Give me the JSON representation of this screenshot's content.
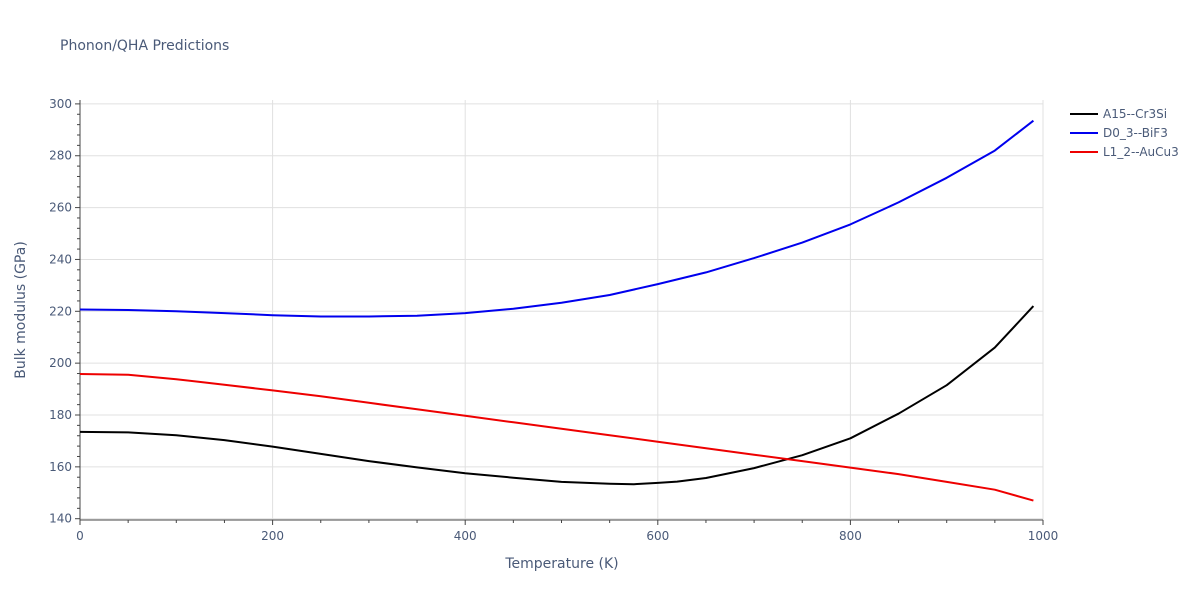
{
  "chart_data": {
    "type": "line",
    "title": "Phonon/QHA Predictions",
    "xlabel": "Temperature (K)",
    "ylabel": "Bulk modulus (GPa)",
    "xlim": [
      0,
      1000
    ],
    "ylim": [
      139.5,
      301.5
    ],
    "xticks": [
      0,
      200,
      400,
      600,
      800,
      1000
    ],
    "yticks": [
      140,
      160,
      180,
      200,
      220,
      240,
      260,
      280,
      300
    ],
    "grid": true,
    "legend_position": "top-right",
    "series": [
      {
        "name": "A15--Cr3Si",
        "color": "#000000",
        "x": [
          0,
          50,
          100,
          150,
          200,
          250,
          300,
          350,
          400,
          450,
          500,
          550,
          575,
          600,
          620,
          650,
          700,
          750,
          800,
          850,
          900,
          950,
          990
        ],
        "y": [
          173.5,
          173.3,
          172.2,
          170.3,
          167.8,
          165.0,
          162.2,
          159.8,
          157.5,
          155.8,
          154.2,
          153.5,
          153.3,
          153.8,
          154.3,
          155.7,
          159.5,
          164.5,
          171.0,
          180.5,
          191.5,
          206.0,
          222.0
        ]
      },
      {
        "name": "D0_3--BiF3",
        "color": "#0000ee",
        "x": [
          0,
          50,
          100,
          150,
          200,
          250,
          300,
          350,
          400,
          450,
          500,
          550,
          600,
          650,
          700,
          750,
          800,
          850,
          900,
          950,
          990
        ],
        "y": [
          220.7,
          220.5,
          220.0,
          219.3,
          218.5,
          218.0,
          218.0,
          218.3,
          219.3,
          221.0,
          223.3,
          226.3,
          230.5,
          235.0,
          240.5,
          246.5,
          253.5,
          262.0,
          271.5,
          282.0,
          293.5
        ]
      },
      {
        "name": "L1_2--AuCu3",
        "color": "#ee0000",
        "x": [
          0,
          50,
          100,
          150,
          200,
          250,
          300,
          350,
          400,
          450,
          500,
          550,
          600,
          650,
          700,
          750,
          800,
          850,
          900,
          950,
          990
        ],
        "y": [
          195.8,
          195.5,
          193.8,
          191.7,
          189.5,
          187.2,
          184.7,
          182.2,
          179.7,
          177.2,
          174.7,
          172.2,
          169.7,
          167.2,
          164.7,
          162.2,
          159.7,
          157.2,
          154.2,
          151.2,
          147.0
        ]
      }
    ]
  }
}
